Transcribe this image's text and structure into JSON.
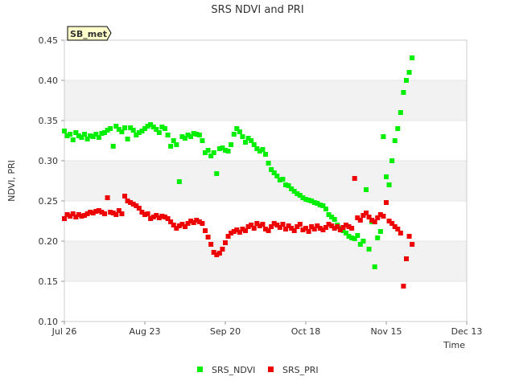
{
  "chart_data": {
    "type": "scatter",
    "title": "SRS NDVI and PRI",
    "xlabel": "Time",
    "ylabel": "NDVI, PRI",
    "badge": "SB_met",
    "x_ticks": [
      "Jul 26",
      "Aug 23",
      "Sep 20",
      "Oct 18",
      "Nov 15",
      "Dec 13"
    ],
    "y_ticks": [
      "0.10",
      "0.15",
      "0.20",
      "0.25",
      "0.30",
      "0.35",
      "0.40",
      "0.45"
    ],
    "xlim": [
      "2023-07-26",
      "2023-12-13"
    ],
    "ylim": [
      0.1,
      0.45
    ],
    "grid": "alternating horizontal bands",
    "legend_position": "bottom",
    "series": [
      {
        "name": "SRS_NDVI",
        "color": "#00ee00",
        "points": [
          [
            "2023-07-26",
            0.337
          ],
          [
            "2023-07-27",
            0.331
          ],
          [
            "2023-07-28",
            0.333
          ],
          [
            "2023-07-29",
            0.326
          ],
          [
            "2023-07-30",
            0.335
          ],
          [
            "2023-07-31",
            0.331
          ],
          [
            "2023-08-01",
            0.329
          ],
          [
            "2023-08-02",
            0.333
          ],
          [
            "2023-08-03",
            0.327
          ],
          [
            "2023-08-04",
            0.331
          ],
          [
            "2023-08-05",
            0.33
          ],
          [
            "2023-08-06",
            0.333
          ],
          [
            "2023-08-07",
            0.329
          ],
          [
            "2023-08-08",
            0.334
          ],
          [
            "2023-08-09",
            0.335
          ],
          [
            "2023-08-10",
            0.338
          ],
          [
            "2023-08-11",
            0.34
          ],
          [
            "2023-08-12",
            0.318
          ],
          [
            "2023-08-13",
            0.343
          ],
          [
            "2023-08-14",
            0.339
          ],
          [
            "2023-08-15",
            0.336
          ],
          [
            "2023-08-16",
            0.341
          ],
          [
            "2023-08-17",
            0.327
          ],
          [
            "2023-08-18",
            0.341
          ],
          [
            "2023-08-19",
            0.338
          ],
          [
            "2023-08-20",
            0.332
          ],
          [
            "2023-08-21",
            0.335
          ],
          [
            "2023-08-22",
            0.337
          ],
          [
            "2023-08-23",
            0.34
          ],
          [
            "2023-08-24",
            0.343
          ],
          [
            "2023-08-25",
            0.345
          ],
          [
            "2023-08-26",
            0.342
          ],
          [
            "2023-08-27",
            0.339
          ],
          [
            "2023-08-28",
            0.335
          ],
          [
            "2023-08-29",
            0.342
          ],
          [
            "2023-08-30",
            0.34
          ],
          [
            "2023-08-31",
            0.332
          ],
          [
            "2023-09-01",
            0.318
          ],
          [
            "2023-09-02",
            0.325
          ],
          [
            "2023-09-03",
            0.32
          ],
          [
            "2023-09-04",
            0.274
          ],
          [
            "2023-09-05",
            0.33
          ],
          [
            "2023-09-06",
            0.328
          ],
          [
            "2023-09-07",
            0.332
          ],
          [
            "2023-09-08",
            0.33
          ],
          [
            "2023-09-09",
            0.334
          ],
          [
            "2023-09-10",
            0.333
          ],
          [
            "2023-09-11",
            0.332
          ],
          [
            "2023-09-12",
            0.325
          ],
          [
            "2023-09-13",
            0.31
          ],
          [
            "2023-09-14",
            0.313
          ],
          [
            "2023-09-15",
            0.306
          ],
          [
            "2023-09-16",
            0.31
          ],
          [
            "2023-09-17",
            0.284
          ],
          [
            "2023-09-18",
            0.315
          ],
          [
            "2023-09-19",
            0.316
          ],
          [
            "2023-09-20",
            0.313
          ],
          [
            "2023-09-21",
            0.312
          ],
          [
            "2023-09-22",
            0.32
          ],
          [
            "2023-09-23",
            0.333
          ],
          [
            "2023-09-24",
            0.34
          ],
          [
            "2023-09-25",
            0.336
          ],
          [
            "2023-09-26",
            0.33
          ],
          [
            "2023-09-27",
            0.323
          ],
          [
            "2023-09-28",
            0.328
          ],
          [
            "2023-09-29",
            0.325
          ],
          [
            "2023-09-30",
            0.32
          ],
          [
            "2023-10-01",
            0.315
          ],
          [
            "2023-10-02",
            0.312
          ],
          [
            "2023-10-03",
            0.314
          ],
          [
            "2023-10-04",
            0.308
          ],
          [
            "2023-10-05",
            0.297
          ],
          [
            "2023-10-06",
            0.289
          ],
          [
            "2023-10-07",
            0.285
          ],
          [
            "2023-10-08",
            0.281
          ],
          [
            "2023-10-09",
            0.276
          ],
          [
            "2023-10-10",
            0.277
          ],
          [
            "2023-10-11",
            0.27
          ],
          [
            "2023-10-12",
            0.269
          ],
          [
            "2023-10-13",
            0.265
          ],
          [
            "2023-10-14",
            0.262
          ],
          [
            "2023-10-15",
            0.259
          ],
          [
            "2023-10-16",
            0.257
          ],
          [
            "2023-10-17",
            0.254
          ],
          [
            "2023-10-18",
            0.252
          ],
          [
            "2023-10-19",
            0.251
          ],
          [
            "2023-10-20",
            0.25
          ],
          [
            "2023-10-21",
            0.248
          ],
          [
            "2023-10-22",
            0.247
          ],
          [
            "2023-10-23",
            0.245
          ],
          [
            "2023-10-24",
            0.244
          ],
          [
            "2023-10-25",
            0.24
          ],
          [
            "2023-10-26",
            0.233
          ],
          [
            "2023-10-27",
            0.23
          ],
          [
            "2023-10-28",
            0.227
          ],
          [
            "2023-10-29",
            0.22
          ],
          [
            "2023-10-30",
            0.216
          ],
          [
            "2023-10-31",
            0.213
          ],
          [
            "2023-11-01",
            0.21
          ],
          [
            "2023-11-02",
            0.206
          ],
          [
            "2023-11-03",
            0.204
          ],
          [
            "2023-11-04",
            0.203
          ],
          [
            "2023-11-05",
            0.207
          ],
          [
            "2023-11-06",
            0.196
          ],
          [
            "2023-11-07",
            0.2
          ],
          [
            "2023-11-08",
            0.264
          ],
          [
            "2023-11-09",
            0.19
          ],
          [
            "2023-11-10",
            0.224
          ],
          [
            "2023-11-11",
            0.168
          ],
          [
            "2023-11-12",
            0.204
          ],
          [
            "2023-11-13",
            0.212
          ],
          [
            "2023-11-14",
            0.33
          ],
          [
            "2023-11-15",
            0.28
          ],
          [
            "2023-11-16",
            0.27
          ],
          [
            "2023-11-17",
            0.3
          ],
          [
            "2023-11-18",
            0.325
          ],
          [
            "2023-11-19",
            0.34
          ],
          [
            "2023-11-20",
            0.36
          ],
          [
            "2023-11-21",
            0.385
          ],
          [
            "2023-11-22",
            0.4
          ],
          [
            "2023-11-23",
            0.41
          ],
          [
            "2023-11-24",
            0.428
          ]
        ]
      },
      {
        "name": "SRS_PRI",
        "color": "#ee0000",
        "points": [
          [
            "2023-07-26",
            0.228
          ],
          [
            "2023-07-27",
            0.233
          ],
          [
            "2023-07-28",
            0.231
          ],
          [
            "2023-07-29",
            0.234
          ],
          [
            "2023-07-30",
            0.23
          ],
          [
            "2023-07-31",
            0.233
          ],
          [
            "2023-08-01",
            0.231
          ],
          [
            "2023-08-02",
            0.232
          ],
          [
            "2023-08-03",
            0.234
          ],
          [
            "2023-08-04",
            0.236
          ],
          [
            "2023-08-05",
            0.235
          ],
          [
            "2023-08-06",
            0.237
          ],
          [
            "2023-08-07",
            0.238
          ],
          [
            "2023-08-08",
            0.236
          ],
          [
            "2023-08-09",
            0.234
          ],
          [
            "2023-08-10",
            0.254
          ],
          [
            "2023-08-11",
            0.236
          ],
          [
            "2023-08-12",
            0.235
          ],
          [
            "2023-08-13",
            0.233
          ],
          [
            "2023-08-14",
            0.238
          ],
          [
            "2023-08-15",
            0.234
          ],
          [
            "2023-08-16",
            0.256
          ],
          [
            "2023-08-17",
            0.25
          ],
          [
            "2023-08-18",
            0.248
          ],
          [
            "2023-08-19",
            0.246
          ],
          [
            "2023-08-20",
            0.244
          ],
          [
            "2023-08-21",
            0.241
          ],
          [
            "2023-08-22",
            0.236
          ],
          [
            "2023-08-23",
            0.233
          ],
          [
            "2023-08-24",
            0.234
          ],
          [
            "2023-08-25",
            0.228
          ],
          [
            "2023-08-26",
            0.23
          ],
          [
            "2023-08-27",
            0.232
          ],
          [
            "2023-08-28",
            0.229
          ],
          [
            "2023-08-29",
            0.231
          ],
          [
            "2023-08-30",
            0.23
          ],
          [
            "2023-08-31",
            0.228
          ],
          [
            "2023-09-01",
            0.224
          ],
          [
            "2023-09-02",
            0.22
          ],
          [
            "2023-09-03",
            0.216
          ],
          [
            "2023-09-04",
            0.219
          ],
          [
            "2023-09-05",
            0.221
          ],
          [
            "2023-09-06",
            0.218
          ],
          [
            "2023-09-07",
            0.222
          ],
          [
            "2023-09-08",
            0.225
          ],
          [
            "2023-09-09",
            0.223
          ],
          [
            "2023-09-10",
            0.226
          ],
          [
            "2023-09-11",
            0.224
          ],
          [
            "2023-09-12",
            0.222
          ],
          [
            "2023-09-13",
            0.213
          ],
          [
            "2023-09-14",
            0.205
          ],
          [
            "2023-09-15",
            0.196
          ],
          [
            "2023-09-16",
            0.186
          ],
          [
            "2023-09-17",
            0.183
          ],
          [
            "2023-09-18",
            0.185
          ],
          [
            "2023-09-19",
            0.19
          ],
          [
            "2023-09-20",
            0.198
          ],
          [
            "2023-09-21",
            0.206
          ],
          [
            "2023-09-22",
            0.21
          ],
          [
            "2023-09-23",
            0.212
          ],
          [
            "2023-09-24",
            0.214
          ],
          [
            "2023-09-25",
            0.211
          ],
          [
            "2023-09-26",
            0.215
          ],
          [
            "2023-09-27",
            0.213
          ],
          [
            "2023-09-28",
            0.218
          ],
          [
            "2023-09-29",
            0.22
          ],
          [
            "2023-09-30",
            0.216
          ],
          [
            "2023-10-01",
            0.222
          ],
          [
            "2023-10-02",
            0.219
          ],
          [
            "2023-10-03",
            0.221
          ],
          [
            "2023-10-04",
            0.215
          ],
          [
            "2023-10-05",
            0.213
          ],
          [
            "2023-10-06",
            0.218
          ],
          [
            "2023-10-07",
            0.222
          ],
          [
            "2023-10-08",
            0.22
          ],
          [
            "2023-10-09",
            0.217
          ],
          [
            "2023-10-10",
            0.221
          ],
          [
            "2023-10-11",
            0.215
          ],
          [
            "2023-10-12",
            0.219
          ],
          [
            "2023-10-13",
            0.216
          ],
          [
            "2023-10-14",
            0.213
          ],
          [
            "2023-10-15",
            0.218
          ],
          [
            "2023-10-16",
            0.221
          ],
          [
            "2023-10-17",
            0.214
          ],
          [
            "2023-10-18",
            0.216
          ],
          [
            "2023-10-19",
            0.212
          ],
          [
            "2023-10-20",
            0.218
          ],
          [
            "2023-10-21",
            0.215
          ],
          [
            "2023-10-22",
            0.219
          ],
          [
            "2023-10-23",
            0.216
          ],
          [
            "2023-10-24",
            0.214
          ],
          [
            "2023-10-25",
            0.217
          ],
          [
            "2023-10-26",
            0.221
          ],
          [
            "2023-10-27",
            0.219
          ],
          [
            "2023-10-28",
            0.216
          ],
          [
            "2023-10-29",
            0.218
          ],
          [
            "2023-10-30",
            0.214
          ],
          [
            "2023-10-31",
            0.217
          ],
          [
            "2023-11-01",
            0.22
          ],
          [
            "2023-11-02",
            0.218
          ],
          [
            "2023-11-03",
            0.216
          ],
          [
            "2023-11-04",
            0.278
          ],
          [
            "2023-11-05",
            0.229
          ],
          [
            "2023-11-06",
            0.226
          ],
          [
            "2023-11-07",
            0.232
          ],
          [
            "2023-11-08",
            0.235
          ],
          [
            "2023-11-09",
            0.23
          ],
          [
            "2023-11-10",
            0.226
          ],
          [
            "2023-11-11",
            0.224
          ],
          [
            "2023-11-12",
            0.229
          ],
          [
            "2023-11-13",
            0.233
          ],
          [
            "2023-11-14",
            0.231
          ],
          [
            "2023-11-15",
            0.248
          ],
          [
            "2023-11-16",
            0.225
          ],
          [
            "2023-11-17",
            0.222
          ],
          [
            "2023-11-18",
            0.218
          ],
          [
            "2023-11-19",
            0.215
          ],
          [
            "2023-11-20",
            0.21
          ],
          [
            "2023-11-21",
            0.144
          ],
          [
            "2023-11-22",
            0.178
          ],
          [
            "2023-11-23",
            0.206
          ],
          [
            "2023-11-24",
            0.196
          ]
        ]
      }
    ]
  }
}
